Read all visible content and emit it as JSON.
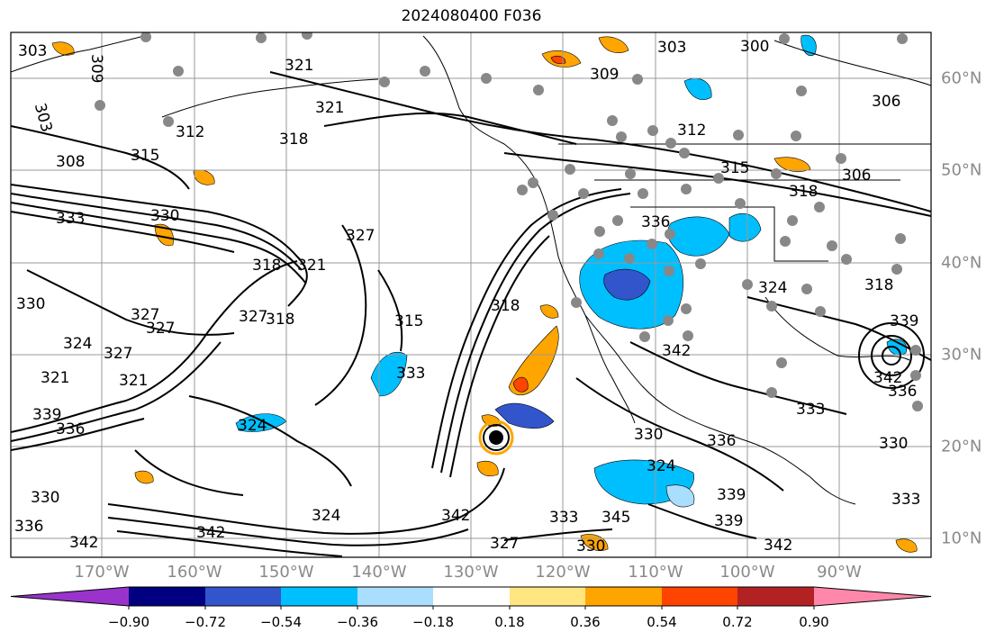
{
  "title": "2024080400 F036",
  "lon_labels": [
    "170°W",
    "160°W",
    "150°W",
    "140°W",
    "130°W",
    "120°W",
    "110°W",
    "100°W",
    "90°W"
  ],
  "lat_labels": [
    "60°N",
    "50°N",
    "40°N",
    "30°N",
    "20°N",
    "10°N"
  ],
  "colorbar": {
    "colors": [
      "#9933cc",
      "#000080",
      "#3355cc",
      "#00bfff",
      "#aadeff",
      "#ffffff",
      "#ffe680",
      "#ffa500",
      "#ff4400",
      "#b22222",
      "#ff88aa"
    ],
    "tick_labels": [
      "−0.90",
      "−0.72",
      "−0.54",
      "−0.36",
      "−0.18",
      "0.18",
      "0.36",
      "0.54",
      "0.72",
      "0.90"
    ]
  },
  "contour_labels": [
    "303",
    "309",
    "303",
    "321",
    "312",
    "308",
    "315",
    "318",
    "321",
    "309",
    "303",
    "300",
    "306",
    "312",
    "315",
    "318",
    "306",
    "333",
    "330",
    "327",
    "318",
    "321",
    "336",
    "327",
    "330",
    "318",
    "327",
    "324",
    "327",
    "315",
    "342",
    "321",
    "321",
    "327",
    "318",
    "324",
    "339",
    "336",
    "324",
    "318",
    "339",
    "342",
    "342",
    "333",
    "336",
    "330",
    "342",
    "336",
    "324",
    "330",
    "330",
    "339",
    "336",
    "339",
    "345",
    "342",
    "333",
    "333",
    "327",
    "324",
    "333",
    "330",
    "342"
  ]
}
